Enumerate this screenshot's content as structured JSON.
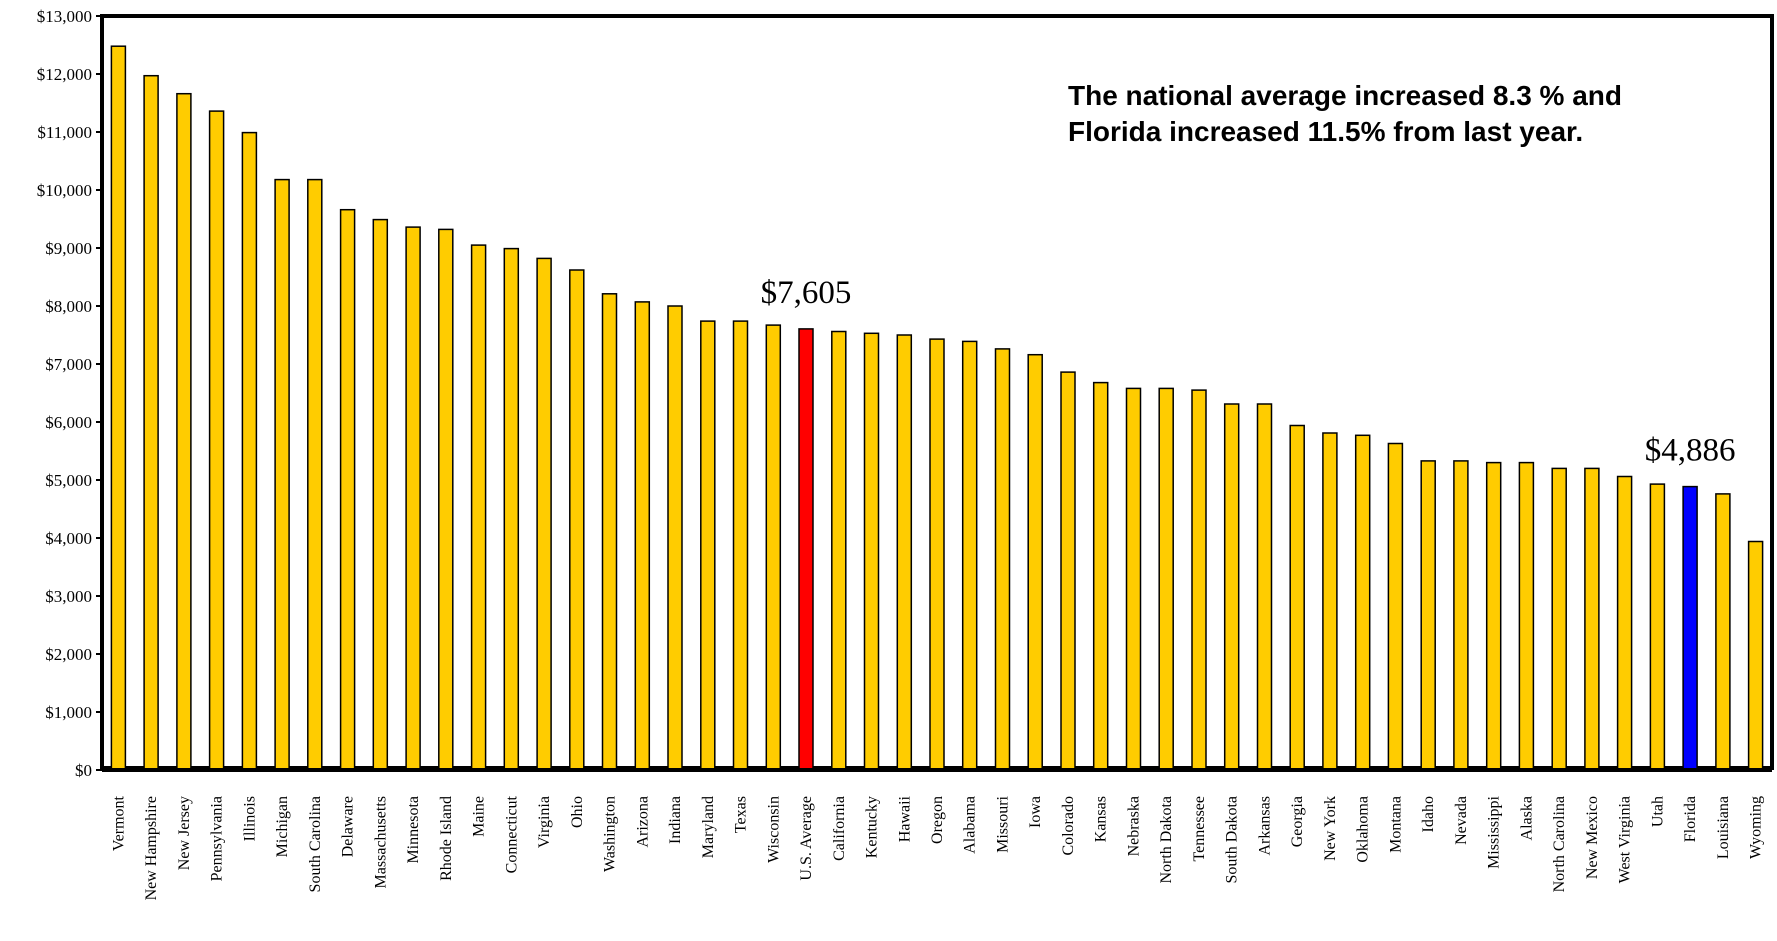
{
  "chart_data": {
    "type": "bar",
    "categories": [
      "Vermont",
      "New Hampshire",
      "New Jersey",
      "Pennsylvania",
      "Illinois",
      "Michigan",
      "South Carolina",
      "Delaware",
      "Massachusetts",
      "Minnesota",
      "Rhode Island",
      "Maine",
      "Connecticut",
      "Virginia",
      "Ohio",
      "Washington",
      "Arizona",
      "Indiana",
      "Maryland",
      "Texas",
      "Wisconsin",
      "U.S. Average",
      "California",
      "Kentucky",
      "Hawaii",
      "Oregon",
      "Alabama",
      "Missouri",
      "Iowa",
      "Colorado",
      "Kansas",
      "Nebraska",
      "North Dakota",
      "Tennessee",
      "South Dakota",
      "Arkansas",
      "Georgia",
      "New York",
      "Oklahoma",
      "Montana",
      "Idaho",
      "Nevada",
      "Mississippi",
      "Alaska",
      "North Carolina",
      "New Mexico",
      "West Virginia",
      "Utah",
      "Florida",
      "Louisiana",
      "Wyoming"
    ],
    "values": [
      12480,
      11970,
      11660,
      11360,
      10990,
      10180,
      10180,
      9660,
      9490,
      9360,
      9320,
      9050,
      8990,
      8820,
      8620,
      8210,
      8070,
      8000,
      7740,
      7740,
      7670,
      7605,
      7560,
      7530,
      7500,
      7430,
      7390,
      7260,
      7160,
      6860,
      6680,
      6580,
      6580,
      6550,
      6310,
      6310,
      5940,
      5810,
      5770,
      5630,
      5330,
      5330,
      5300,
      5300,
      5200,
      5200,
      5060,
      4930,
      4886,
      4760,
      3940
    ],
    "ylim": [
      0,
      13000
    ],
    "yticks": [
      "$0",
      "$1,000",
      "$2,000",
      "$3,000",
      "$4,000",
      "$5,000",
      "$6,000",
      "$7,000",
      "$8,000",
      "$9,000",
      "$10,000",
      "$11,000",
      "$12,000",
      "$13,000"
    ],
    "colors": {
      "default": "#FFCC00",
      "us_average": "#FF0000",
      "florida": "#0000FF",
      "outline": "#000000"
    },
    "highlights": {
      "U.S. Average": "us_average",
      "Florida": "florida"
    },
    "callouts": [
      {
        "category": "U.S. Average",
        "text": "$7,605"
      },
      {
        "category": "Florida",
        "text": "$4,886"
      }
    ]
  },
  "annotation": {
    "text": "The national average increased 8.3 % and Florida increased 11.5% from last year."
  }
}
